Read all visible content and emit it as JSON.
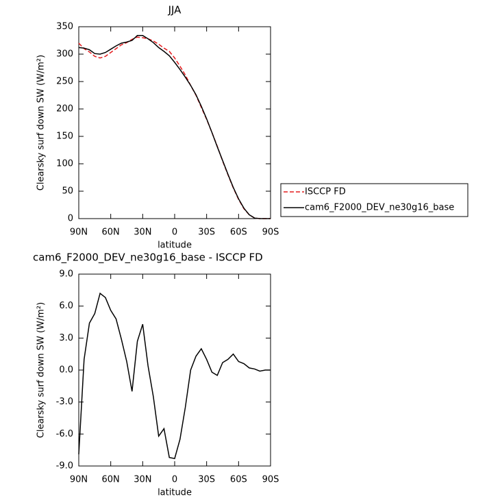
{
  "chart_data": [
    {
      "type": "line",
      "title": "JJA",
      "x_label": "latitude",
      "y_label": "Clearsky surf down SW (W/m²)",
      "x": [
        90,
        85,
        80,
        75,
        70,
        65,
        60,
        55,
        50,
        45,
        40,
        35,
        30,
        25,
        20,
        15,
        10,
        5,
        0,
        -5,
        -10,
        -15,
        -20,
        -25,
        -30,
        -35,
        -40,
        -45,
        -50,
        -55,
        -60,
        -65,
        -70,
        -75,
        -80,
        -85,
        -90
      ],
      "series": [
        {
          "name": "ISCCP FD",
          "color": "#e41a1c",
          "style": "dashed",
          "values": [
            320,
            310,
            304,
            296,
            293,
            296,
            303,
            310,
            317,
            321,
            327,
            331,
            330,
            328,
            324,
            318,
            311,
            305,
            293,
            278,
            262,
            243,
            225,
            203,
            181,
            157,
            132,
            105,
            80,
            56,
            35,
            18,
            7,
            1,
            0,
            0,
            0
          ]
        },
        {
          "name": "cam6_F2000_DEV_ne30g16_base",
          "color": "#000000",
          "style": "solid",
          "values": [
            312,
            311,
            308,
            301,
            300,
            303,
            309,
            315,
            320,
            322,
            325,
            334,
            334,
            328,
            321,
            312,
            305,
            297,
            285,
            272,
            258,
            243,
            226,
            205,
            182,
            157,
            131,
            106,
            81,
            57,
            36,
            19,
            7,
            1,
            0,
            0,
            0
          ]
        }
      ],
      "xlim": [
        90,
        -90
      ],
      "xticks": [
        {
          "value": 90,
          "label": "90N"
        },
        {
          "value": 60,
          "label": "60N"
        },
        {
          "value": 30,
          "label": "30N"
        },
        0,
        {
          "value": -30,
          "label": "30S"
        },
        {
          "value": -60,
          "label": "60S"
        },
        {
          "value": -90,
          "label": "90S"
        }
      ],
      "ylim": [
        0,
        350
      ],
      "yticks": [
        0,
        50,
        100,
        150,
        200,
        250,
        300,
        350
      ],
      "legend": "right"
    },
    {
      "type": "line",
      "title": "cam6_F2000_DEV_ne30g16_base - ISCCP FD",
      "x_label": "latitude",
      "y_label": "Clearsky surf down SW (W/m²)",
      "x": [
        90,
        85,
        80,
        75,
        70,
        65,
        60,
        55,
        50,
        45,
        40,
        35,
        30,
        25,
        20,
        15,
        10,
        5,
        0,
        -5,
        -10,
        -15,
        -20,
        -25,
        -30,
        -35,
        -40,
        -45,
        -50,
        -55,
        -60,
        -65,
        -70,
        -75,
        -80,
        -85,
        -90
      ],
      "series": [
        {
          "color": "#000000",
          "style": "solid",
          "values": [
            -7.9,
            1.0,
            4.4,
            5.3,
            7.2,
            6.8,
            5.6,
            4.8,
            2.9,
            0.8,
            -2.0,
            2.7,
            4.3,
            0.4,
            -2.5,
            -6.2,
            -5.5,
            -8.2,
            -8.3,
            -6.5,
            -3.5,
            0.0,
            1.3,
            2.0,
            1.0,
            -0.2,
            -0.5,
            0.7,
            1.0,
            1.5,
            0.8,
            0.6,
            0.2,
            0.1,
            -0.1,
            0.0,
            0.0
          ]
        }
      ],
      "xlim": [
        90,
        -90
      ],
      "xticks": [
        {
          "value": 90,
          "label": "90N"
        },
        {
          "value": 60,
          "label": "60N"
        },
        {
          "value": 30,
          "label": "30N"
        },
        0,
        {
          "value": -30,
          "label": "30S"
        },
        {
          "value": -60,
          "label": "60S"
        },
        {
          "value": -90,
          "label": "90S"
        }
      ],
      "ylim": [
        -9,
        9
      ],
      "yticks": [
        {
          "value": -9,
          "label": "-9.0"
        },
        {
          "value": -6,
          "label": "-6.0"
        },
        {
          "value": -3,
          "label": "-3.0"
        },
        {
          "value": 0,
          "label": "0.0"
        },
        {
          "value": 3,
          "label": "3.0"
        },
        {
          "value": 6,
          "label": "6.0"
        },
        {
          "value": 9,
          "label": "9.0"
        }
      ]
    }
  ]
}
